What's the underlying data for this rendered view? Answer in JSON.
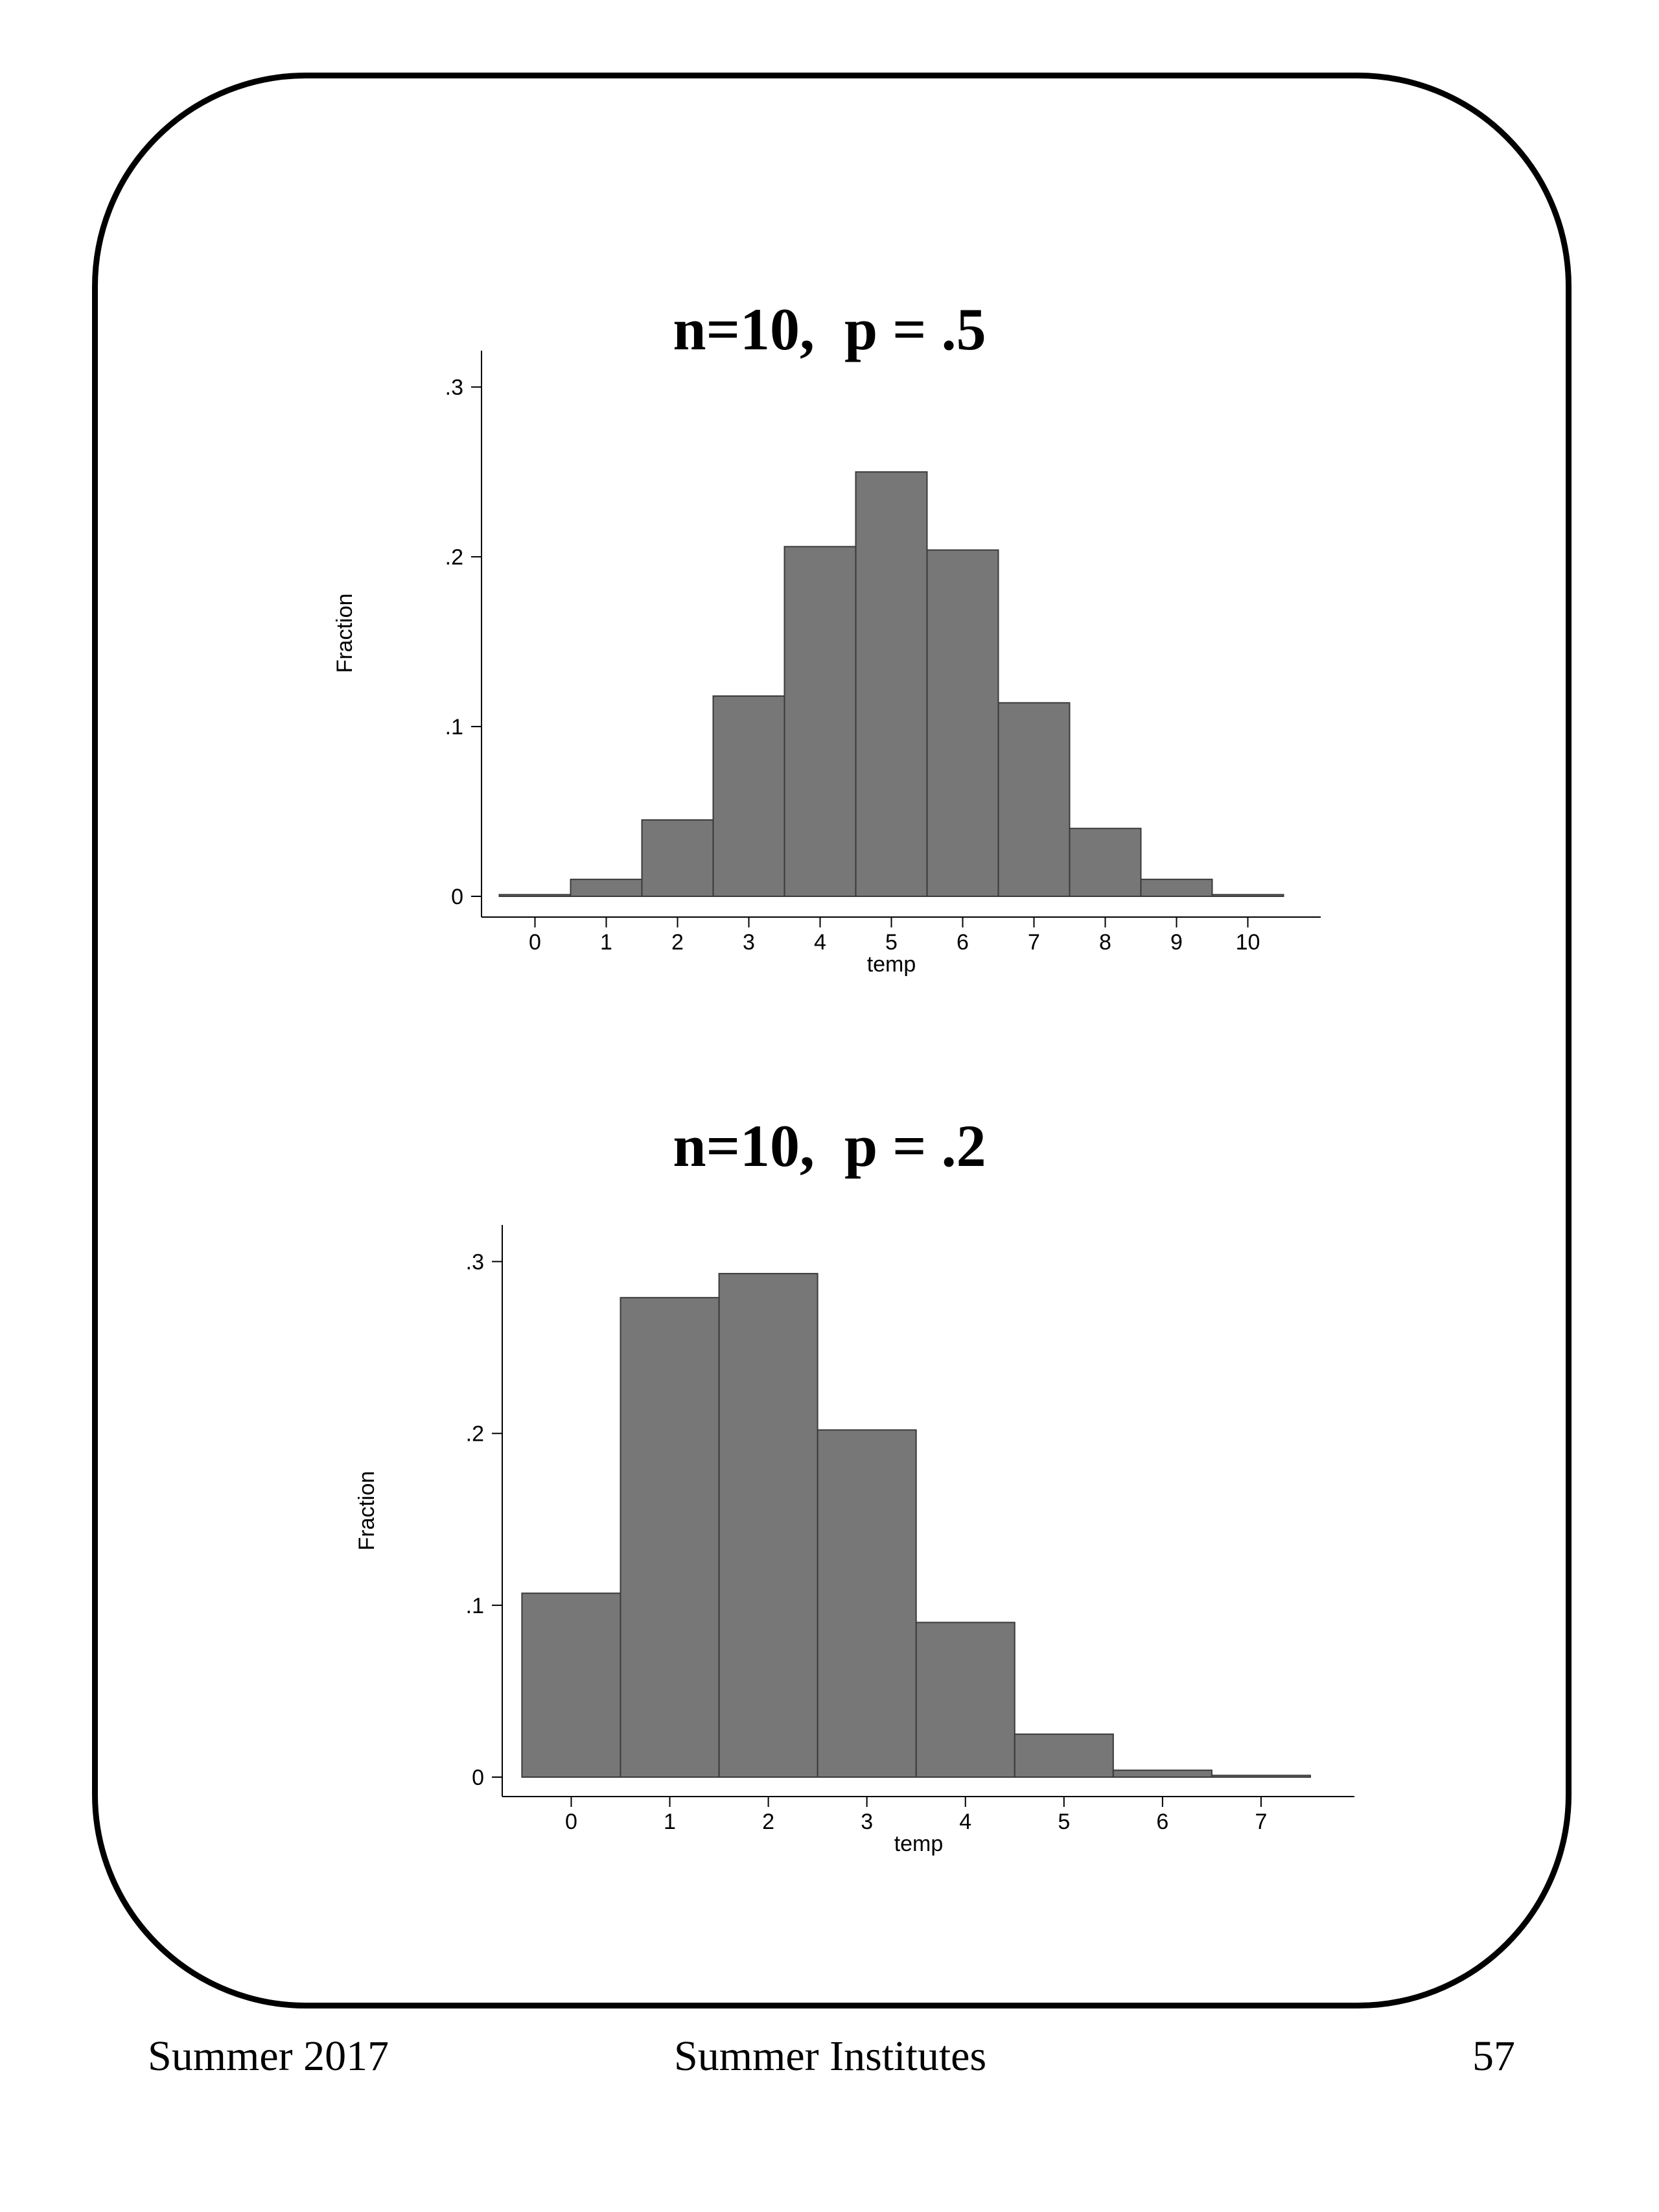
{
  "chart_data": [
    {
      "type": "bar",
      "title": "n=10,  p = .5",
      "xlabel": "temp",
      "ylabel": "Fraction",
      "x": [
        0,
        1,
        2,
        3,
        4,
        5,
        6,
        7,
        8,
        9,
        10
      ],
      "values": [
        0.001,
        0.01,
        0.045,
        0.118,
        0.206,
        0.25,
        0.204,
        0.114,
        0.04,
        0.01,
        0.001
      ],
      "xticks": [
        "0",
        "1",
        "2",
        "3",
        "4",
        "5",
        "6",
        "7",
        "8",
        "9",
        "10"
      ],
      "yticks": [
        "0",
        ".1",
        ".2",
        ".3"
      ],
      "ytick_values": [
        0,
        0.1,
        0.2,
        0.3
      ],
      "xlim": [
        -0.75,
        10.75
      ],
      "ylim": [
        0,
        0.31
      ],
      "grid": false,
      "bar_color": "#777777"
    },
    {
      "type": "bar",
      "title": "n=10,  p = .2",
      "xlabel": "temp",
      "ylabel": "Fraction",
      "x": [
        0,
        1,
        2,
        3,
        4,
        5,
        6,
        7
      ],
      "values": [
        0.107,
        0.279,
        0.293,
        0.202,
        0.09,
        0.025,
        0.004,
        0.001
      ],
      "xticks": [
        "0",
        "1",
        "2",
        "3",
        "4",
        "5",
        "6",
        "7"
      ],
      "yticks": [
        "0",
        ".1",
        ".2",
        ".3"
      ],
      "ytick_values": [
        0,
        0.1,
        0.2,
        0.3
      ],
      "xlim": [
        -0.7,
        7.75
      ],
      "ylim": [
        0,
        0.31
      ],
      "grid": false,
      "bar_color": "#777777"
    }
  ],
  "footer": {
    "left": "Summer 2017",
    "center": "Summer Institutes",
    "right": "57"
  }
}
